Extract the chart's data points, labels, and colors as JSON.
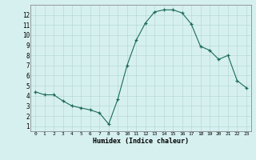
{
  "x": [
    0,
    1,
    2,
    3,
    4,
    5,
    6,
    7,
    8,
    9,
    10,
    11,
    12,
    13,
    14,
    15,
    16,
    17,
    18,
    19,
    20,
    21,
    22,
    23
  ],
  "y": [
    4.4,
    4.1,
    4.1,
    3.5,
    3.0,
    2.8,
    2.6,
    2.3,
    1.2,
    3.7,
    7.0,
    9.5,
    11.2,
    12.3,
    12.5,
    12.5,
    12.2,
    11.1,
    8.9,
    8.5,
    7.6,
    8.0,
    5.5,
    4.8
  ],
  "xlim": [
    -0.5,
    23.5
  ],
  "ylim": [
    0.5,
    13.0
  ],
  "xlabel": "Humidex (Indice chaleur)",
  "xticks": [
    0,
    1,
    2,
    3,
    4,
    5,
    6,
    7,
    8,
    9,
    10,
    11,
    12,
    13,
    14,
    15,
    16,
    17,
    18,
    19,
    20,
    21,
    22,
    23
  ],
  "yticks": [
    1,
    2,
    3,
    4,
    5,
    6,
    7,
    8,
    9,
    10,
    11,
    12
  ],
  "line_color": "#1a6b5a",
  "bg_color": "#d6f0f0",
  "grid_color": "#b8d8d8",
  "marker_color": "#1a6b5a"
}
